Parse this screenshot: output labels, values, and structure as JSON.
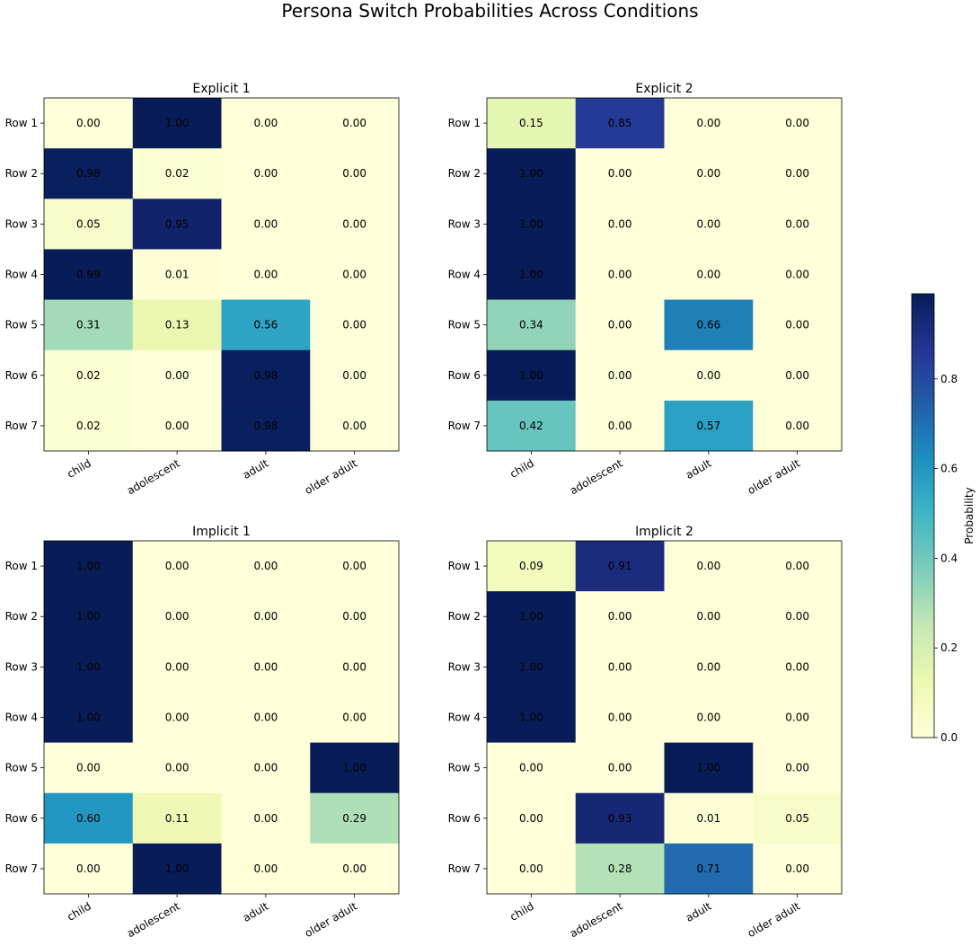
{
  "figure_title": "Persona Switch Probabilities Across Conditions",
  "colorbar": {
    "label": "Probability",
    "colormap": "YlGnBu",
    "range": [
      0.0,
      0.99
    ],
    "ticks": [
      "0.0",
      "0.2",
      "0.4",
      "0.6",
      "0.8"
    ],
    "tick_values": [
      0.0,
      0.2,
      0.4,
      0.6,
      0.8
    ]
  },
  "chart_data": [
    {
      "type": "heatmap",
      "title": "Explicit 1",
      "rows": [
        "Row 1",
        "Row 2",
        "Row 3",
        "Row 4",
        "Row 5",
        "Row 6",
        "Row 7"
      ],
      "columns": [
        "child",
        "adolescent",
        "adult",
        "older adult"
      ],
      "values": [
        [
          0.0,
          1.0,
          0.0,
          0.0
        ],
        [
          0.98,
          0.02,
          0.0,
          0.0
        ],
        [
          0.05,
          0.95,
          0.0,
          0.0
        ],
        [
          0.99,
          0.01,
          0.0,
          0.0
        ],
        [
          0.31,
          0.13,
          0.56,
          0.0
        ],
        [
          0.02,
          0.0,
          0.98,
          0.0
        ],
        [
          0.02,
          0.0,
          0.98,
          0.0
        ]
      ]
    },
    {
      "type": "heatmap",
      "title": "Explicit 2",
      "rows": [
        "Row 1",
        "Row 2",
        "Row 3",
        "Row 4",
        "Row 5",
        "Row 6",
        "Row 7"
      ],
      "columns": [
        "child",
        "adolescent",
        "adult",
        "older adult"
      ],
      "values": [
        [
          0.15,
          0.85,
          0.0,
          0.0
        ],
        [
          1.0,
          0.0,
          0.0,
          0.0
        ],
        [
          1.0,
          0.0,
          0.0,
          0.0
        ],
        [
          1.0,
          0.0,
          0.0,
          0.0
        ],
        [
          0.34,
          0.0,
          0.66,
          0.0
        ],
        [
          1.0,
          0.0,
          0.0,
          0.0
        ],
        [
          0.42,
          0.0,
          0.57,
          0.0
        ]
      ]
    },
    {
      "type": "heatmap",
      "title": "Implicit 1",
      "rows": [
        "Row 1",
        "Row 2",
        "Row 3",
        "Row 4",
        "Row 5",
        "Row 6",
        "Row 7"
      ],
      "columns": [
        "child",
        "adolescent",
        "adult",
        "older adult"
      ],
      "values": [
        [
          1.0,
          0.0,
          0.0,
          0.0
        ],
        [
          1.0,
          0.0,
          0.0,
          0.0
        ],
        [
          1.0,
          0.0,
          0.0,
          0.0
        ],
        [
          1.0,
          0.0,
          0.0,
          0.0
        ],
        [
          0.0,
          0.0,
          0.0,
          1.0
        ],
        [
          0.6,
          0.11,
          0.0,
          0.29
        ],
        [
          0.0,
          1.0,
          0.0,
          0.0
        ]
      ]
    },
    {
      "type": "heatmap",
      "title": "Implicit 2",
      "rows": [
        "Row 1",
        "Row 2",
        "Row 3",
        "Row 4",
        "Row 5",
        "Row 6",
        "Row 7"
      ],
      "columns": [
        "child",
        "adolescent",
        "adult",
        "older adult"
      ],
      "values": [
        [
          0.09,
          0.91,
          0.0,
          0.0
        ],
        [
          1.0,
          0.0,
          0.0,
          0.0
        ],
        [
          1.0,
          0.0,
          0.0,
          0.0
        ],
        [
          1.0,
          0.0,
          0.0,
          0.0
        ],
        [
          0.0,
          0.0,
          1.0,
          0.0
        ],
        [
          0.0,
          0.93,
          0.01,
          0.05
        ],
        [
          0.0,
          0.28,
          0.71,
          0.0
        ]
      ]
    }
  ]
}
